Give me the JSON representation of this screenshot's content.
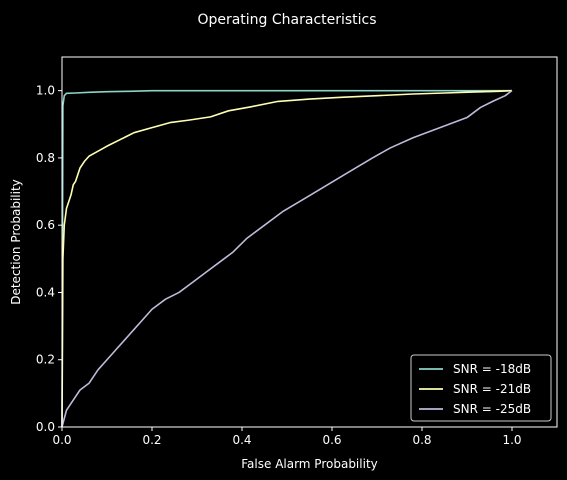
{
  "chart_data": {
    "type": "line",
    "title": "Operating Characteristics",
    "xlabel": "False Alarm Probability",
    "ylabel": "Detection Probability",
    "xlim": [
      0,
      1.1
    ],
    "ylim": [
      0,
      1.1
    ],
    "xticks": [
      0.0,
      0.2,
      0.4,
      0.6,
      0.8,
      1.0
    ],
    "xtick_labels": [
      "0.0",
      "0.2",
      "0.4",
      "0.6",
      "0.8",
      "1.0"
    ],
    "yticks": [
      0.0,
      0.2,
      0.4,
      0.6,
      0.8,
      1.0
    ],
    "ytick_labels": [
      "0.0",
      "0.2",
      "0.4",
      "0.6",
      "0.8",
      "1.0"
    ],
    "grid": false,
    "legend_position": "lower-right",
    "background_color": "#000000",
    "foreground_color": "#ffffff",
    "series": [
      {
        "name": "SNR = -18dB",
        "color": "#8dd3c7",
        "x": [
          0,
          0.002,
          0.005,
          0.01,
          0.03,
          0.06,
          0.1,
          0.15,
          0.2,
          0.3,
          0.5,
          0.7,
          1.0
        ],
        "y": [
          0,
          0.955,
          0.985,
          0.992,
          0.993,
          0.995,
          0.997,
          0.998,
          1.0,
          1.0,
          1.0,
          1.0,
          1.0
        ]
      },
      {
        "name": "SNR = -21dB",
        "color": "#ffffb3",
        "x": [
          0,
          0.002,
          0.005,
          0.01,
          0.015,
          0.02,
          0.025,
          0.03,
          0.035,
          0.04,
          0.05,
          0.06,
          0.08,
          0.1,
          0.13,
          0.16,
          0.2,
          0.24,
          0.28,
          0.33,
          0.37,
          0.42,
          0.48,
          0.55,
          0.62,
          0.7,
          0.78,
          0.85,
          0.92,
          0.97,
          1.0
        ],
        "y": [
          0,
          0.5,
          0.6,
          0.65,
          0.67,
          0.69,
          0.72,
          0.73,
          0.75,
          0.77,
          0.79,
          0.805,
          0.82,
          0.835,
          0.855,
          0.875,
          0.89,
          0.905,
          0.912,
          0.922,
          0.94,
          0.952,
          0.968,
          0.975,
          0.98,
          0.985,
          0.99,
          0.993,
          0.996,
          0.998,
          1.0
        ]
      },
      {
        "name": "SNR = -25dB",
        "color": "#bebada",
        "x": [
          0,
          0.01,
          0.02,
          0.03,
          0.04,
          0.05,
          0.06,
          0.07,
          0.08,
          0.1,
          0.12,
          0.14,
          0.16,
          0.18,
          0.2,
          0.23,
          0.26,
          0.29,
          0.32,
          0.35,
          0.38,
          0.41,
          0.45,
          0.49,
          0.54,
          0.59,
          0.64,
          0.69,
          0.73,
          0.78,
          0.82,
          0.86,
          0.9,
          0.93,
          0.96,
          0.985,
          1.0
        ],
        "y": [
          0,
          0.05,
          0.07,
          0.09,
          0.11,
          0.12,
          0.13,
          0.15,
          0.17,
          0.2,
          0.23,
          0.26,
          0.29,
          0.32,
          0.35,
          0.38,
          0.4,
          0.43,
          0.46,
          0.49,
          0.52,
          0.56,
          0.6,
          0.64,
          0.68,
          0.72,
          0.76,
          0.8,
          0.83,
          0.86,
          0.88,
          0.9,
          0.92,
          0.95,
          0.97,
          0.985,
          1.0
        ]
      }
    ]
  }
}
